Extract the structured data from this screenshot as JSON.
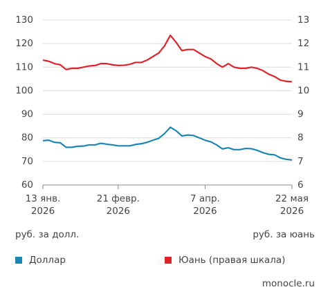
{
  "chart_data": {
    "type": "line",
    "x": [
      "2026-01-13",
      "2026-01-16",
      "2026-01-19",
      "2026-01-22",
      "2026-01-25",
      "2026-01-28",
      "2026-01-31",
      "2026-02-03",
      "2026-02-06",
      "2026-02-09",
      "2026-02-12",
      "2026-02-15",
      "2026-02-18",
      "2026-02-21",
      "2026-02-24",
      "2026-02-27",
      "2026-03-02",
      "2026-03-05",
      "2026-03-08",
      "2026-03-11",
      "2026-03-14",
      "2026-03-17",
      "2026-03-20",
      "2026-03-23",
      "2026-03-26",
      "2026-03-29",
      "2026-04-01",
      "2026-04-04",
      "2026-04-07",
      "2026-04-10",
      "2026-04-13",
      "2026-04-16",
      "2026-04-19",
      "2026-04-22",
      "2026-04-25",
      "2026-04-28",
      "2026-05-01",
      "2026-05-04",
      "2026-05-07",
      "2026-05-10",
      "2026-05-13",
      "2026-05-16",
      "2026-05-19",
      "2026-05-22"
    ],
    "series": [
      {
        "name": "Доллар",
        "color": "#1b86b4",
        "axis": "y",
        "values": [
          78.8,
          79,
          78.1,
          77.9,
          76,
          76,
          76.4,
          76.5,
          77,
          77,
          77.7,
          77.3,
          77,
          76.6,
          76.6,
          76.6,
          77.2,
          77.5,
          78.1,
          79,
          79.8,
          81.8,
          84.5,
          83,
          80.8,
          81.2,
          81,
          80,
          79,
          78.3,
          77,
          75.3,
          75.8,
          75,
          75,
          75.5,
          75.4,
          74.7,
          73.7,
          73,
          72.8,
          71.5,
          70.9,
          70.6
        ]
      },
      {
        "name": "Юань (правая шкала)",
        "color": "#e2222b",
        "axis": "y2",
        "values": [
          11.3,
          11.25,
          11.15,
          11.1,
          10.9,
          10.95,
          10.95,
          11.0,
          11.05,
          11.07,
          11.15,
          11.15,
          11.1,
          11.07,
          11.08,
          11.12,
          11.2,
          11.2,
          11.3,
          11.45,
          11.6,
          11.9,
          12.35,
          12.05,
          11.7,
          11.75,
          11.75,
          11.6,
          11.45,
          11.35,
          11.15,
          11.0,
          11.15,
          11.0,
          10.95,
          10.95,
          11.0,
          10.95,
          10.85,
          10.7,
          10.6,
          10.45,
          10.4,
          10.38
        ]
      }
    ],
    "xlim": [
      "2026-01-13",
      "2026-05-22"
    ],
    "xticks": [
      {
        "value": "2026-01-13",
        "label": "13 янв.\n2026"
      },
      {
        "value": "2026-02-21",
        "label": "21 февр.\n2026"
      },
      {
        "value": "2026-04-07",
        "label": "7 апр.\n2026"
      },
      {
        "value": "2026-05-22",
        "label": "22 мая\n2026"
      }
    ],
    "ylim": [
      60,
      130
    ],
    "yticks": [
      60,
      70,
      80,
      90,
      100,
      110,
      120,
      130
    ],
    "y2lim": [
      6,
      13
    ],
    "y2ticks": [
      6,
      7,
      8,
      9,
      10,
      11,
      12,
      13
    ],
    "ylabel": "руб. за долл.",
    "y2label": "руб. за юань",
    "grid": true,
    "source": "monocle.ru"
  }
}
